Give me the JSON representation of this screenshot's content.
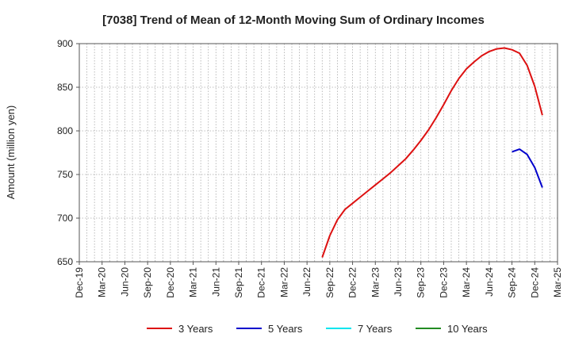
{
  "chart_data": {
    "type": "line",
    "title": "[7038]  Trend of Mean of 12-Month Moving Sum of Ordinary Incomes",
    "ylabel": "Amount (million yen)",
    "xlabel": "",
    "ylim": [
      650,
      900
    ],
    "yticks": [
      650,
      700,
      750,
      800,
      850,
      900
    ],
    "x_range": [
      "2019-12",
      "2025-03"
    ],
    "x_ticks": [
      "Dec-19",
      "Mar-20",
      "Jun-20",
      "Sep-20",
      "Dec-20",
      "Mar-21",
      "Jun-21",
      "Sep-21",
      "Dec-21",
      "Mar-22",
      "Jun-22",
      "Sep-22",
      "Dec-22",
      "Mar-23",
      "Jun-23",
      "Sep-23",
      "Dec-23",
      "Mar-24",
      "Jun-24",
      "Sep-24",
      "Dec-24",
      "Mar-25"
    ],
    "grid": true,
    "legend_position": "bottom",
    "series": [
      {
        "name": "3 Years",
        "color": "#dd1111",
        "points": [
          [
            "2022-08",
            655
          ],
          [
            "2022-09",
            680
          ],
          [
            "2022-10",
            698
          ],
          [
            "2022-11",
            710
          ],
          [
            "2022-12",
            717
          ],
          [
            "2023-01",
            724
          ],
          [
            "2023-02",
            731
          ],
          [
            "2023-03",
            738
          ],
          [
            "2023-04",
            745
          ],
          [
            "2023-05",
            752
          ],
          [
            "2023-06",
            760
          ],
          [
            "2023-07",
            768
          ],
          [
            "2023-08",
            778
          ],
          [
            "2023-09",
            789
          ],
          [
            "2023-10",
            801
          ],
          [
            "2023-11",
            815
          ],
          [
            "2023-12",
            830
          ],
          [
            "2024-01",
            846
          ],
          [
            "2024-02",
            860
          ],
          [
            "2024-03",
            871
          ],
          [
            "2024-04",
            879
          ],
          [
            "2024-05",
            886
          ],
          [
            "2024-06",
            891
          ],
          [
            "2024-07",
            894
          ],
          [
            "2024-08",
            895
          ],
          [
            "2024-09",
            893
          ],
          [
            "2024-10",
            889
          ],
          [
            "2024-11",
            875
          ],
          [
            "2024-12",
            851
          ],
          [
            "2025-01",
            818
          ]
        ]
      },
      {
        "name": "5 Years",
        "color": "#0000cc",
        "points": [
          [
            "2024-09",
            776
          ],
          [
            "2024-10",
            779
          ],
          [
            "2024-11",
            773
          ],
          [
            "2024-12",
            758
          ],
          [
            "2025-01",
            735
          ]
        ]
      },
      {
        "name": "7 Years",
        "color": "#00e5ee",
        "points": []
      },
      {
        "name": "10 Years",
        "color": "#228b22",
        "points": []
      }
    ]
  }
}
